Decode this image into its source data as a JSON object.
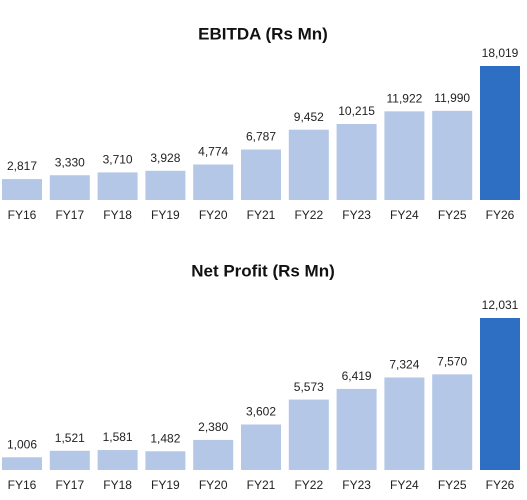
{
  "chart_data": [
    {
      "type": "bar",
      "title": "EBITDA (Rs Mn)",
      "categories": [
        "FY16",
        "FY17",
        "FY18",
        "FY19",
        "FY20",
        "FY21",
        "FY22",
        "FY23",
        "FY24",
        "FY25",
        "FY26"
      ],
      "values": [
        2817,
        3330,
        3710,
        3928,
        4774,
        6787,
        9452,
        10215,
        11922,
        11990,
        18019
      ],
      "value_labels": [
        "2,817",
        "3,330",
        "3,710",
        "3,928",
        "4,774",
        "6,787",
        "9,452",
        "10,215",
        "11,922",
        "11,990",
        "18,019"
      ],
      "colors": [
        "#b4c7e7",
        "#b4c7e7",
        "#b4c7e7",
        "#b4c7e7",
        "#b4c7e7",
        "#b4c7e7",
        "#b4c7e7",
        "#b4c7e7",
        "#b4c7e7",
        "#b4c7e7",
        "#2e6fc4"
      ]
    },
    {
      "type": "bar",
      "title": "Net Profit (Rs Mn)",
      "categories": [
        "FY16",
        "FY17",
        "FY18",
        "FY19",
        "FY20",
        "FY21",
        "FY22",
        "FY23",
        "FY24",
        "FY25",
        "FY26"
      ],
      "values": [
        1006,
        1521,
        1581,
        1482,
        2380,
        3602,
        5573,
        6419,
        7324,
        7570,
        12031
      ],
      "value_labels": [
        "1,006",
        "1,521",
        "1,581",
        "1,482",
        "2,380",
        "3,602",
        "5,573",
        "6,419",
        "7,324",
        "7,570",
        "12,031"
      ],
      "colors": [
        "#b4c7e7",
        "#b4c7e7",
        "#b4c7e7",
        "#b4c7e7",
        "#b4c7e7",
        "#b4c7e7",
        "#b4c7e7",
        "#b4c7e7",
        "#b4c7e7",
        "#b4c7e7",
        "#2e6fc4"
      ]
    }
  ]
}
